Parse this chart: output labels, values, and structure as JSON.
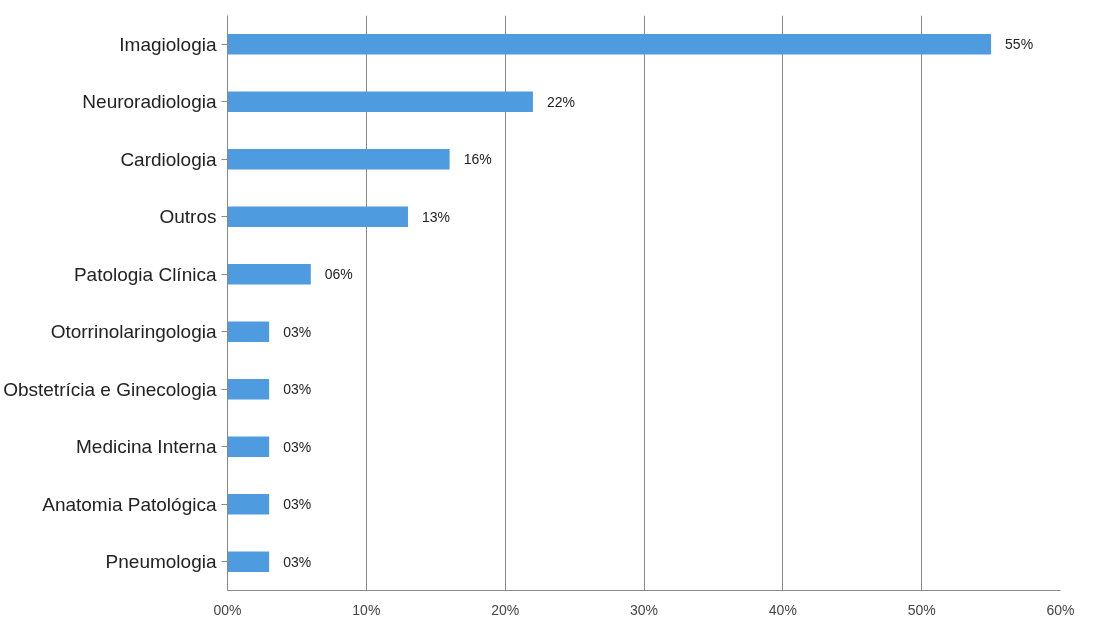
{
  "chart_data": {
    "type": "bar",
    "orientation": "horizontal",
    "categories": [
      "Imagiologia",
      "Neuroradiologia",
      "Cardiologia",
      "Outros",
      "Patologia Clínica",
      "Otorrinolaringologia",
      "Obstetrícia e Ginecologia",
      "Medicina Interna",
      "Anatomia Patológica",
      "Pneumologia"
    ],
    "values": [
      55,
      22,
      16,
      13,
      6,
      3,
      3,
      3,
      3,
      3
    ],
    "value_labels": [
      "55%",
      "22%",
      "16%",
      "13%",
      "06%",
      "03%",
      "03%",
      "03%",
      "03%",
      "03%"
    ],
    "color": "#4f9be0",
    "xlim": [
      0,
      60
    ],
    "xticks": [
      {
        "value": 0,
        "label": "00%"
      },
      {
        "value": 10,
        "label": "10%"
      },
      {
        "value": 20,
        "label": "20%"
      },
      {
        "value": 30,
        "label": "30%"
      },
      {
        "value": 40,
        "label": "40%"
      },
      {
        "value": 50,
        "label": "50%"
      },
      {
        "value": 60,
        "label": "60%"
      }
    ],
    "grid": "x"
  }
}
